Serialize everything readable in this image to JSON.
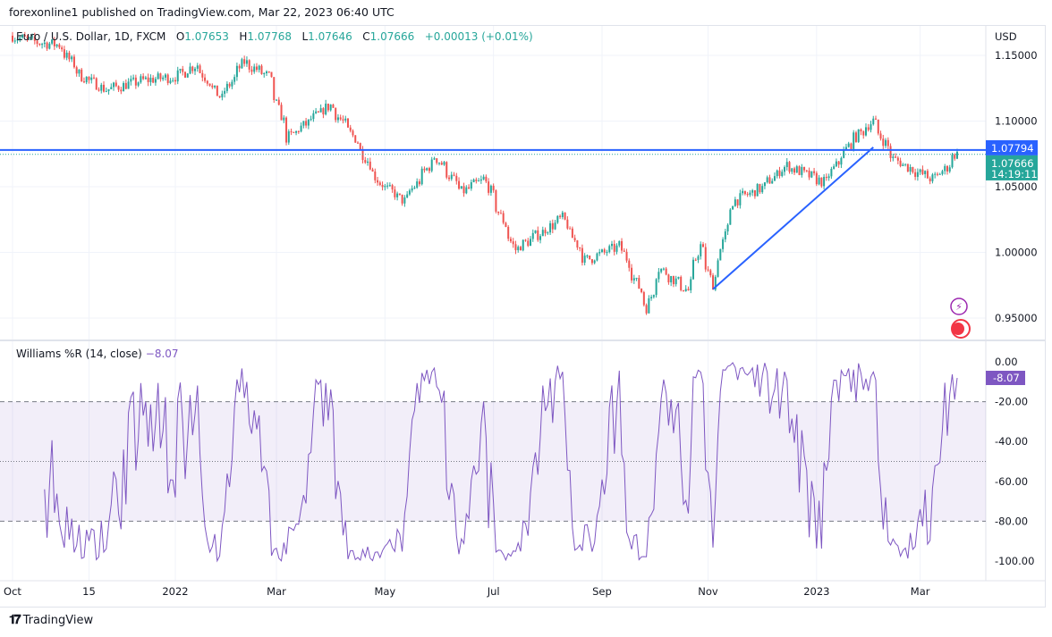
{
  "header": {
    "published": "forexonline1 published on TradingView.com, Mar 22, 2023 06:40 UTC"
  },
  "legend": {
    "symbol": "Euro / U.S. Dollar, 1D, FXCM",
    "o_label": "O",
    "o": "1.07653",
    "h_label": "H",
    "h": "1.07768",
    "l_label": "L",
    "l": "1.07646",
    "c_label": "C",
    "c": "1.07666",
    "change": "+0.00013 (+0.01%)"
  },
  "indicator": {
    "name": "Williams %R (14, close)",
    "value": "−8.07",
    "value_badge": "-8.07"
  },
  "footer": {
    "brand": "TradingView"
  },
  "colors": {
    "up": "#26a69a",
    "down": "#ef5350",
    "line": "#2962ff",
    "indicator": "#7e57c2"
  },
  "chart_data": [
    {
      "type": "candlestick",
      "currency": "USD",
      "y_ticks": [
        "1.15000",
        "1.10000",
        "1.05000",
        "1.00000",
        "0.95000"
      ],
      "ylim": [
        0.935,
        1.175
      ],
      "x_ticks": [
        {
          "label": "Oct",
          "date": "2021-10-01"
        },
        {
          "label": "15",
          "date": "2021-11-15"
        },
        {
          "label": "2022",
          "date": "2022-01-01"
        },
        {
          "label": "Mar",
          "date": "2022-03-01"
        },
        {
          "label": "May",
          "date": "2022-05-01"
        },
        {
          "label": "Jul",
          "date": "2022-07-01"
        },
        {
          "label": "Sep",
          "date": "2022-09-01"
        },
        {
          "label": "Nov",
          "date": "2022-11-01"
        },
        {
          "label": "2023",
          "date": "2023-01-01"
        },
        {
          "label": "Mar",
          "date": "2023-03-01"
        }
      ],
      "close_path": [
        [
          "2021-10-01",
          1.165
        ],
        [
          "2021-10-15",
          1.16
        ],
        [
          "2021-10-28",
          1.158
        ],
        [
          "2021-11-10",
          1.134
        ],
        [
          "2021-11-24",
          1.124
        ],
        [
          "2021-12-15",
          1.131
        ],
        [
          "2022-01-03",
          1.134
        ],
        [
          "2022-01-14",
          1.143
        ],
        [
          "2022-01-28",
          1.117
        ],
        [
          "2022-02-10",
          1.145
        ],
        [
          "2022-02-24",
          1.134
        ],
        [
          "2022-03-07",
          1.087
        ],
        [
          "2022-03-31",
          1.112
        ],
        [
          "2022-04-14",
          1.087
        ],
        [
          "2022-04-28",
          1.053
        ],
        [
          "2022-05-12",
          1.039
        ],
        [
          "2022-05-30",
          1.073
        ],
        [
          "2022-06-14",
          1.046
        ],
        [
          "2022-06-27",
          1.056
        ],
        [
          "2022-07-14",
          1.002
        ],
        [
          "2022-08-10",
          1.026
        ],
        [
          "2022-08-23",
          0.994
        ],
        [
          "2022-09-12",
          1.005
        ],
        [
          "2022-09-27",
          0.958
        ],
        [
          "2022-10-04",
          0.988
        ],
        [
          "2022-10-20",
          0.971
        ],
        [
          "2022-10-27",
          1.005
        ],
        [
          "2022-11-03",
          0.976
        ],
        [
          "2022-11-15",
          1.039
        ],
        [
          "2022-12-01",
          1.049
        ],
        [
          "2022-12-15",
          1.066
        ],
        [
          "2023-01-06",
          1.053
        ],
        [
          "2023-01-20",
          1.083
        ],
        [
          "2023-02-02",
          1.1
        ],
        [
          "2023-02-14",
          1.071
        ],
        [
          "2023-03-01",
          1.06
        ],
        [
          "2023-03-08",
          1.056
        ],
        [
          "2023-03-15",
          1.063
        ],
        [
          "2023-03-22",
          1.07666
        ]
      ],
      "horizontal_line": {
        "value": 1.07794,
        "label": "1.07794"
      },
      "last_price": {
        "value": 1.07666,
        "label": "1.07666",
        "countdown": "14:19:11"
      },
      "trend_line": [
        [
          "2022-11-03",
          0.972
        ],
        [
          "2023-02-02",
          1.08
        ]
      ]
    },
    {
      "type": "line",
      "name": "Williams %R (14, close)",
      "y_ticks": [
        "0.00",
        "-20.00",
        "-40.00",
        "-60.00",
        "-80.00",
        "-100.00"
      ],
      "ylim": [
        -100,
        0
      ],
      "band": [
        -80,
        -20
      ],
      "midline": -50,
      "last": -8.07
    }
  ]
}
